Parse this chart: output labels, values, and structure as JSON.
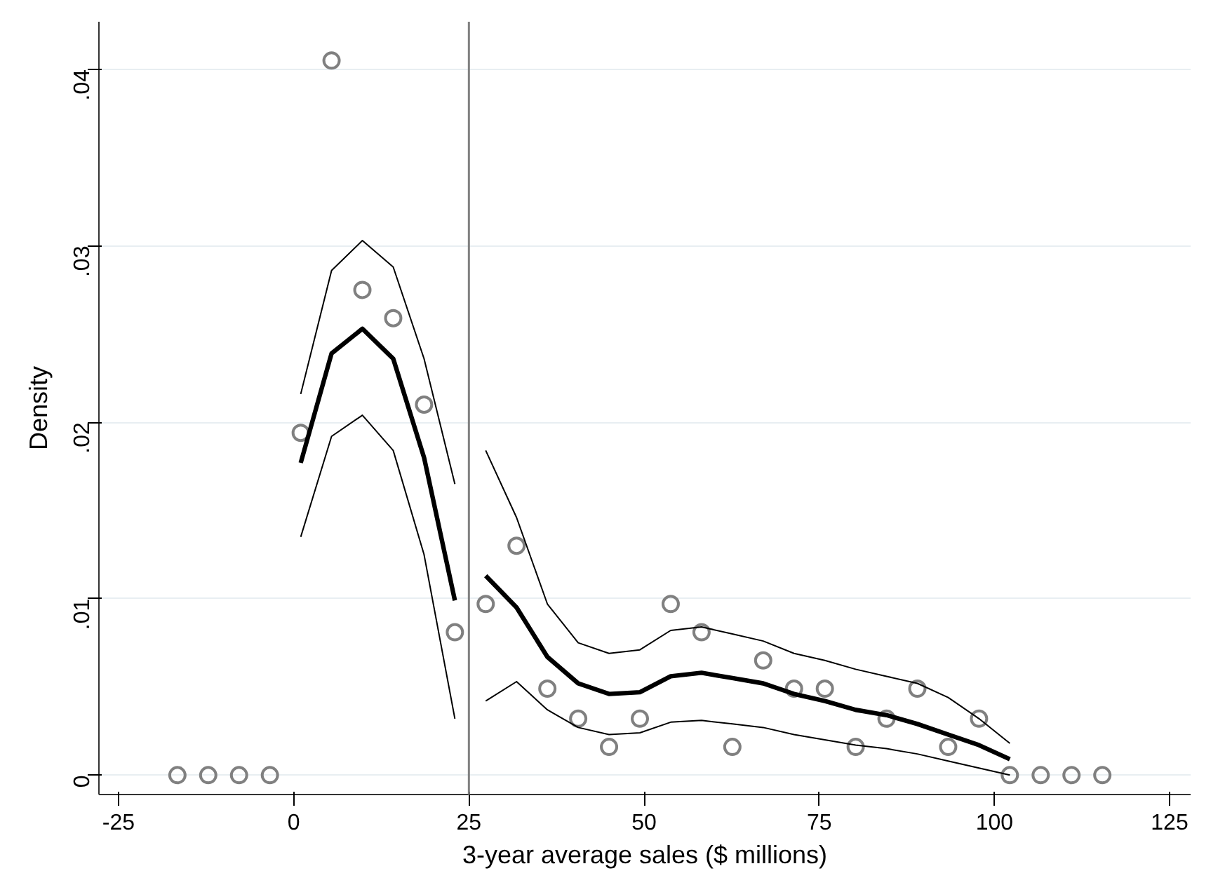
{
  "chart_data": {
    "type": "line",
    "xlabel": "3-year average sales ($ millions)",
    "ylabel": "Density",
    "xlim": [
      -27.8,
      128
    ],
    "ylim": [
      -0.0011,
      0.0427
    ],
    "xticks": [
      -25,
      0,
      25,
      50,
      75,
      100,
      125
    ],
    "yticks": [
      {
        "value": 0,
        "label": "0"
      },
      {
        "value": 0.01,
        "label": ".01"
      },
      {
        "value": 0.02,
        "label": ".02"
      },
      {
        "value": 0.03,
        "label": ".03"
      },
      {
        "value": 0.04,
        "label": ".04"
      }
    ],
    "grid": "y",
    "line_style": "solid",
    "ref_lines": [
      {
        "axis": "x",
        "value": 25,
        "color": "#808080"
      }
    ],
    "series": [
      {
        "type": "scatter",
        "marker": "circle",
        "color": "#808080",
        "x": [
          -16.6,
          -12.2,
          -7.8,
          -3.4,
          1.0,
          5.4,
          9.8,
          14.2,
          18.6,
          23.0,
          27.4,
          31.8,
          36.2,
          40.6,
          45.0,
          49.4,
          53.8,
          58.2,
          62.6,
          67.0,
          71.4,
          75.8,
          80.2,
          84.6,
          89.0,
          93.4,
          97.8,
          102.2,
          106.6,
          111.0,
          115.4
        ],
        "values": [
          0,
          0,
          0,
          0,
          0.0194,
          0.0405,
          0.0275,
          0.0259,
          0.021,
          0.0081,
          0.0097,
          0.013,
          0.0049,
          0.0032,
          0.0016,
          0.0032,
          0.0097,
          0.0081,
          0.0016,
          0.0065,
          0.0049,
          0.0049,
          0.0016,
          0.0032,
          0.0049,
          0.0016,
          0.0032,
          0,
          0,
          0,
          0
        ]
      },
      {
        "color": "#000000",
        "x": [
          1.0,
          5.4,
          9.8,
          14.2,
          18.6,
          23.0
        ],
        "values": [
          0.0177,
          0.0239,
          0.0253,
          0.0236,
          0.018,
          0.0099
        ]
      },
      {
        "color": "#000000",
        "x": [
          1.0,
          5.4,
          9.8,
          14.2,
          18.6,
          23.0
        ],
        "values": [
          0.0216,
          0.0286,
          0.0303,
          0.0288,
          0.0236,
          0.0165
        ]
      },
      {
        "color": "#000000",
        "x": [
          1.0,
          5.4,
          9.8,
          14.2,
          18.6,
          23.0
        ],
        "values": [
          0.0135,
          0.0192,
          0.0204,
          0.0184,
          0.0125,
          0.0032
        ]
      },
      {
        "type": "line",
        "color": "#000000",
        "x": [
          27.4,
          31.8,
          36.2,
          40.6,
          45.0,
          49.4,
          53.8,
          58.2,
          62.6,
          67.0,
          71.4,
          75.8,
          80.2,
          84.6,
          89.0,
          93.4,
          97.8,
          102.2
        ],
        "values": [
          0.0113,
          0.0095,
          0.0067,
          0.0052,
          0.0046,
          0.0047,
          0.0056,
          0.0058,
          0.0055,
          0.0052,
          0.0046,
          0.0042,
          0.0037,
          0.0034,
          0.0029,
          0.0023,
          0.0017,
          0.0009
        ]
      },
      {
        "type": "line",
        "color": "#000000",
        "x": [
          27.4,
          31.8,
          36.2,
          40.6,
          45.0,
          49.4,
          53.8,
          58.2,
          62.6,
          67.0,
          71.4,
          75.8,
          80.2,
          84.6,
          89.0,
          93.4,
          97.8,
          102.2
        ],
        "values": [
          0.0184,
          0.0146,
          0.0097,
          0.0075,
          0.0069,
          0.0071,
          0.0082,
          0.0084,
          0.008,
          0.0076,
          0.0069,
          0.0065,
          0.006,
          0.0056,
          0.0052,
          0.0044,
          0.0032,
          0.0018
        ]
      },
      {
        "type": "line",
        "color": "#000000",
        "x": [
          27.4,
          31.8,
          36.2,
          40.6,
          45.0,
          49.4,
          53.8,
          58.2,
          62.6,
          67.0,
          71.4,
          75.8,
          80.2,
          84.6,
          89.0,
          93.4,
          97.8,
          102.2
        ],
        "values": [
          0.0042,
          0.0053,
          0.0037,
          0.0027,
          0.0023,
          0.0024,
          0.003,
          0.0031,
          0.0029,
          0.0027,
          0.0023,
          0.002,
          0.0017,
          0.0015,
          0.0012,
          0.0008,
          0.0004,
          0.0
        ]
      }
    ]
  }
}
